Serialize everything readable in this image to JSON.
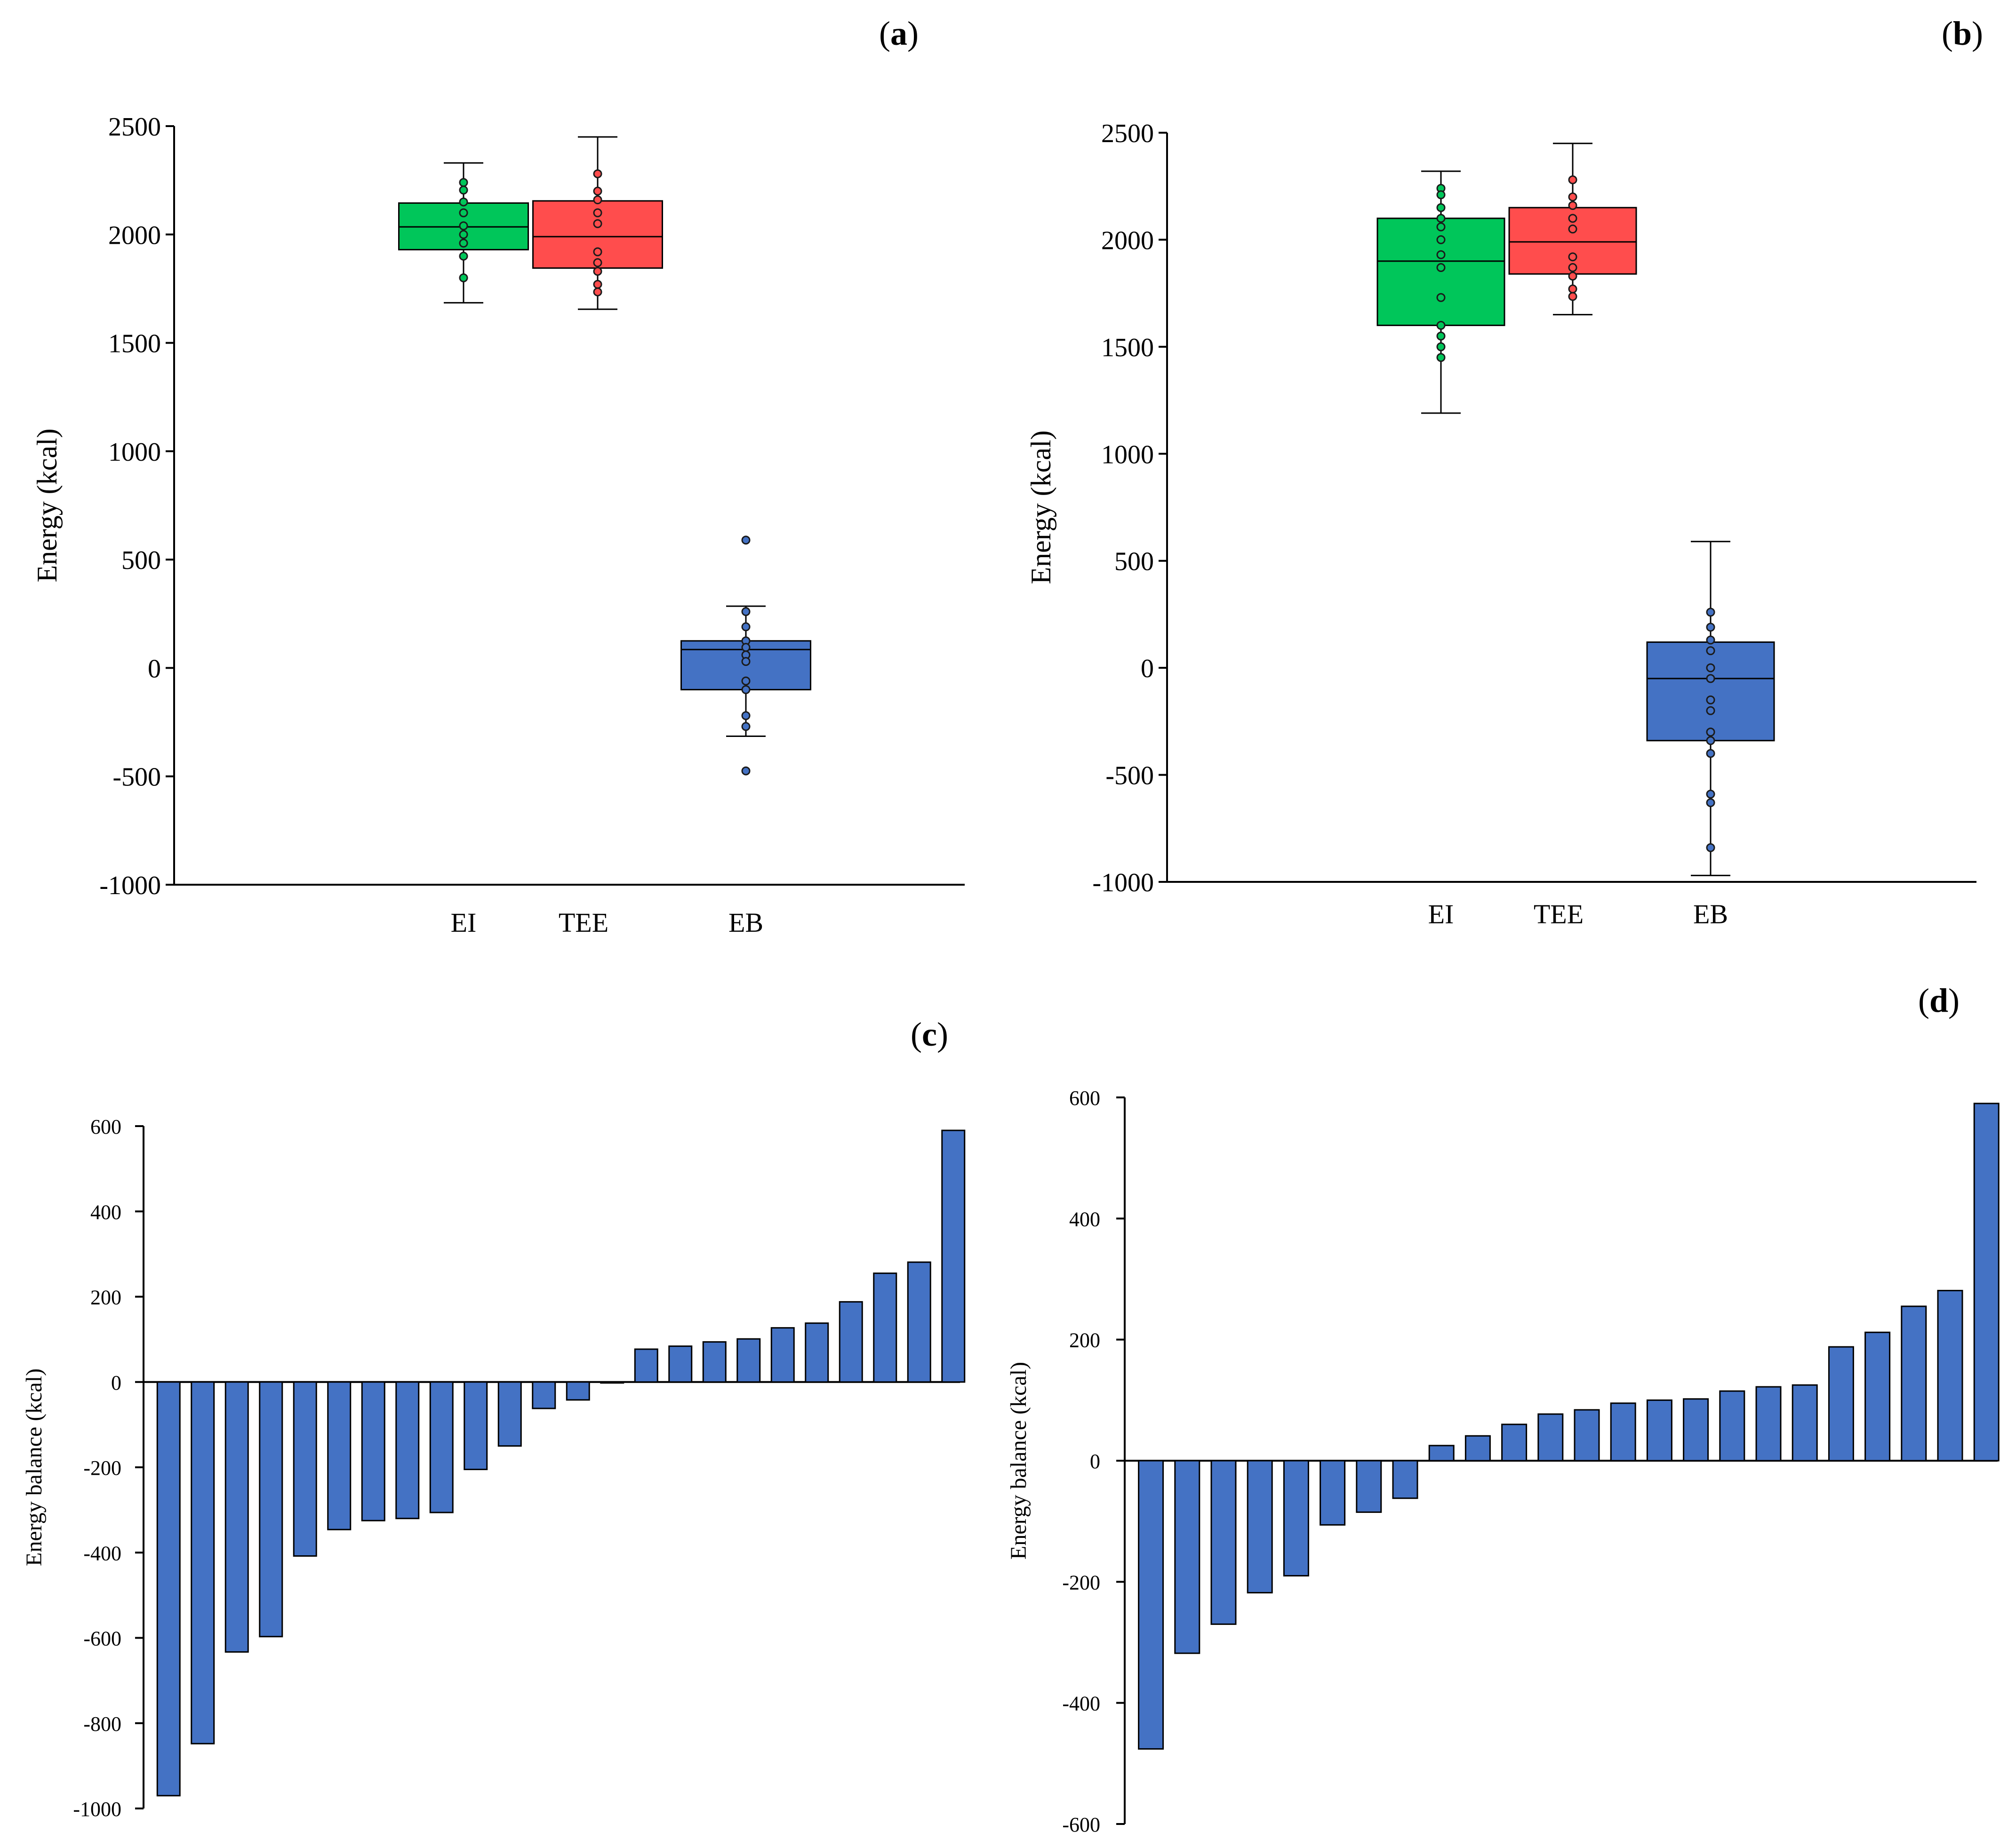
{
  "chart_data": [
    {
      "id": "a",
      "panel_label": "a",
      "type": "box",
      "ylabel": "Energy (kcal)",
      "ylim": [
        -1000,
        2500
      ],
      "yticks": [
        2500,
        2000,
        1500,
        1000,
        500,
        0,
        -500,
        -1000
      ],
      "categories": [
        "EI",
        "TEE",
        "EB"
      ],
      "boxes": [
        {
          "name": "EI",
          "color": "#00C65A",
          "whisker_low": 1685,
          "q1": 1930,
          "median": 2035,
          "q3": 2145,
          "whisker_high": 2330,
          "points": [
            2240,
            2205,
            2150,
            2100,
            2040,
            2000,
            1960,
            1900,
            1800
          ]
        },
        {
          "name": "TEE",
          "color": "#FF4D4D",
          "whisker_low": 1655,
          "q1": 1845,
          "median": 1990,
          "q3": 2155,
          "whisker_high": 2450,
          "points": [
            2280,
            2200,
            2160,
            2100,
            2050,
            1920,
            1870,
            1830,
            1770,
            1735
          ]
        },
        {
          "name": "EB",
          "color": "#4472C4",
          "whisker_low": -315,
          "q1": -100,
          "median": 85,
          "q3": 125,
          "whisker_high": 285,
          "points": [
            590,
            260,
            190,
            125,
            95,
            60,
            30,
            -60,
            -100,
            -220,
            -270,
            -475
          ]
        }
      ]
    },
    {
      "id": "b",
      "panel_label": "b",
      "type": "box",
      "ylabel": "Energy (kcal)",
      "ylim": [
        -1000,
        2500
      ],
      "yticks": [
        2500,
        2000,
        1500,
        1000,
        500,
        0,
        -500,
        -1000
      ],
      "categories": [
        "EI",
        "TEE",
        "EB"
      ],
      "boxes": [
        {
          "name": "EI",
          "color": "#00C65A",
          "whisker_low": 1190,
          "q1": 1600,
          "median": 1900,
          "q3": 2100,
          "whisker_high": 2320,
          "points": [
            2240,
            2210,
            2150,
            2100,
            2060,
            2000,
            1930,
            1870,
            1730,
            1600,
            1550,
            1500,
            1450
          ]
        },
        {
          "name": "TEE",
          "color": "#FF4D4D",
          "whisker_low": 1650,
          "q1": 1840,
          "median": 1990,
          "q3": 2150,
          "whisker_high": 2450,
          "points": [
            2280,
            2200,
            2160,
            2100,
            2050,
            1920,
            1870,
            1830,
            1770,
            1735
          ]
        },
        {
          "name": "EB",
          "color": "#4472C4",
          "whisker_low": -970,
          "q1": -340,
          "median": -50,
          "q3": 120,
          "whisker_high": 590,
          "points": [
            260,
            190,
            130,
            80,
            0,
            -50,
            -150,
            -200,
            -300,
            -340,
            -400,
            -590,
            -630,
            -840
          ]
        }
      ]
    },
    {
      "id": "c",
      "panel_label": "c",
      "type": "bar",
      "ylabel": "Energy balance (kcal)",
      "ylim": [
        -1000,
        600
      ],
      "yticks": [
        600,
        400,
        200,
        0,
        -200,
        -400,
        -600,
        -800,
        -1000
      ],
      "color": "#4472C4",
      "values": [
        -970,
        -848,
        -633,
        -597,
        -408,
        -346,
        -325,
        -320,
        -306,
        -205,
        -150,
        -62,
        -42,
        -2,
        77,
        84,
        94,
        101,
        127,
        138,
        188,
        255,
        281,
        590
      ]
    },
    {
      "id": "d",
      "panel_label": "d",
      "type": "bar",
      "ylabel": "Energy balance (kcal)",
      "ylim": [
        -600,
        600
      ],
      "yticks": [
        600,
        400,
        200,
        0,
        -200,
        -400,
        -600
      ],
      "color": "#4472C4",
      "values": [
        -476,
        -318,
        -270,
        -218,
        -190,
        -106,
        -85,
        -62,
        25,
        41,
        60,
        77,
        84,
        95,
        100,
        102,
        115,
        122,
        125,
        188,
        212,
        255,
        281,
        590
      ]
    }
  ]
}
